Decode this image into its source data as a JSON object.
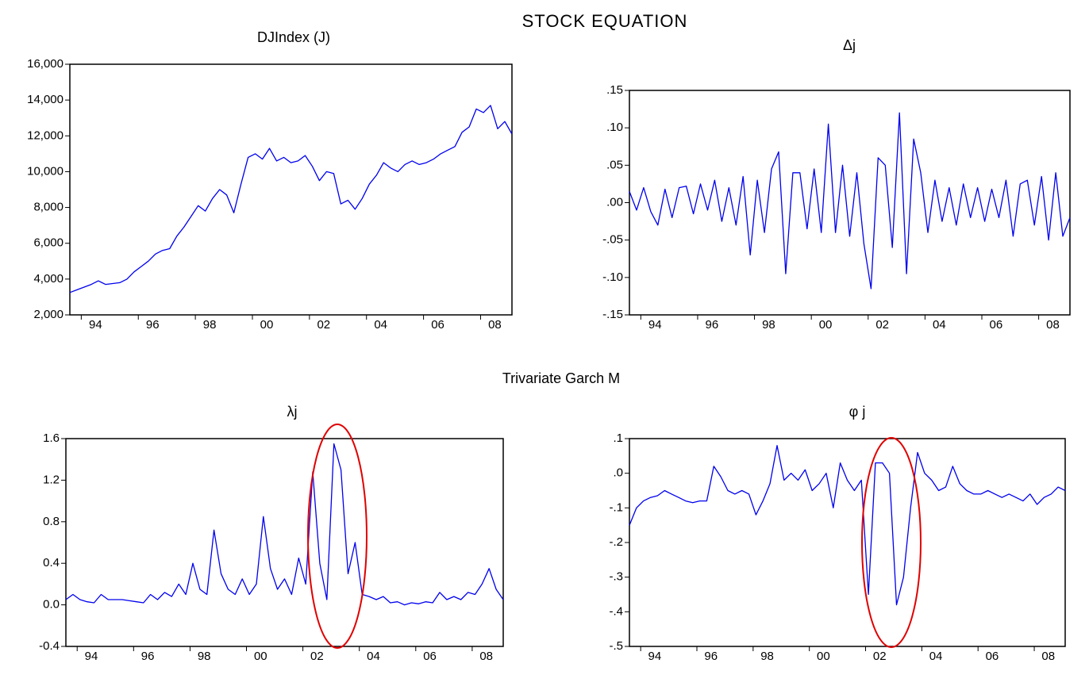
{
  "title": "STOCK EQUATION",
  "section": "Trivariate Garch M",
  "chart_data": [
    {
      "type": "line",
      "title": "DJIndex (J)",
      "color": "#0000ee",
      "x": [
        1993.1,
        1993.35,
        1993.6,
        1993.85,
        1994.1,
        1994.35,
        1994.6,
        1994.85,
        1995.1,
        1995.35,
        1995.6,
        1995.85,
        1996.1,
        1996.35,
        1996.6,
        1996.85,
        1997.1,
        1997.35,
        1997.6,
        1997.85,
        1998.1,
        1998.35,
        1998.6,
        1998.85,
        1999.1,
        1999.35,
        1999.6,
        1999.85,
        2000.1,
        2000.35,
        2000.6,
        2000.85,
        2001.1,
        2001.35,
        2001.6,
        2001.85,
        2002.1,
        2002.35,
        2002.6,
        2002.85,
        2003.1,
        2003.35,
        2003.6,
        2003.85,
        2004.1,
        2004.35,
        2004.6,
        2004.85,
        2005.1,
        2005.35,
        2005.6,
        2005.85,
        2006.1,
        2006.35,
        2006.6,
        2006.85,
        2007.1,
        2007.35,
        2007.6,
        2007.85,
        2008.1,
        2008.35,
        2008.6
      ],
      "values": [
        3250,
        3400,
        3550,
        3700,
        3900,
        3700,
        3750,
        3800,
        4000,
        4400,
        4700,
        5000,
        5400,
        5600,
        5700,
        6400,
        6900,
        7500,
        8100,
        7800,
        8500,
        9000,
        8700,
        7700,
        9300,
        10800,
        11000,
        10700,
        11300,
        10600,
        10800,
        10500,
        10600,
        10900,
        10300,
        9500,
        10000,
        9900,
        8200,
        8400,
        7900,
        8500,
        9300,
        9800,
        10500,
        10200,
        10000,
        10400,
        10600,
        10400,
        10500,
        10700,
        11000,
        11200,
        11400,
        12200,
        12500,
        13500,
        13300,
        13700,
        12400,
        12800,
        12100
      ],
      "xlim": [
        1993.1,
        2008.6
      ],
      "ylim": [
        2000,
        16000
      ],
      "yticks": [
        {
          "value": 2000,
          "label": "2,000"
        },
        {
          "value": 4000,
          "label": "4,000"
        },
        {
          "value": 6000,
          "label": "6,000"
        },
        {
          "value": 8000,
          "label": "8,000"
        },
        {
          "value": 10000,
          "label": "10,000"
        },
        {
          "value": 12000,
          "label": "12,000"
        },
        {
          "value": 14000,
          "label": "14,000"
        },
        {
          "value": 16000,
          "label": "16,000"
        }
      ],
      "xticks": [
        {
          "value": 1994,
          "label": "94"
        },
        {
          "value": 1996,
          "label": "96"
        },
        {
          "value": 1998,
          "label": "98"
        },
        {
          "value": 2000,
          "label": "00"
        },
        {
          "value": 2002,
          "label": "02"
        },
        {
          "value": 2004,
          "label": "04"
        },
        {
          "value": 2006,
          "label": "06"
        },
        {
          "value": 2008,
          "label": "08"
        }
      ]
    },
    {
      "type": "line",
      "title": "Δj",
      "color": "#0000ee",
      "x": [
        1993.1,
        1993.35,
        1993.6,
        1993.85,
        1994.1,
        1994.35,
        1994.6,
        1994.85,
        1995.1,
        1995.35,
        1995.6,
        1995.85,
        1996.1,
        1996.35,
        1996.6,
        1996.85,
        1997.1,
        1997.35,
        1997.6,
        1997.85,
        1998.1,
        1998.35,
        1998.6,
        1998.85,
        1999.1,
        1999.35,
        1999.6,
        1999.85,
        2000.1,
        2000.35,
        2000.6,
        2000.85,
        2001.1,
        2001.35,
        2001.6,
        2001.85,
        2002.1,
        2002.35,
        2002.6,
        2002.85,
        2003.1,
        2003.35,
        2003.6,
        2003.85,
        2004.1,
        2004.35,
        2004.6,
        2004.85,
        2005.1,
        2005.35,
        2005.6,
        2005.85,
        2006.1,
        2006.35,
        2006.6,
        2006.85,
        2007.1,
        2007.35,
        2007.6,
        2007.85,
        2008.1,
        2008.35,
        2008.6
      ],
      "values": [
        0.015,
        -0.01,
        0.02,
        -0.012,
        -0.03,
        0.018,
        -0.02,
        0.02,
        0.022,
        -0.015,
        0.025,
        -0.01,
        0.03,
        -0.025,
        0.02,
        -0.03,
        0.035,
        -0.07,
        0.03,
        -0.04,
        0.045,
        0.068,
        -0.095,
        0.04,
        0.04,
        -0.035,
        0.045,
        -0.04,
        0.105,
        -0.04,
        0.05,
        -0.045,
        0.04,
        -0.055,
        -0.115,
        0.06,
        0.05,
        -0.06,
        0.12,
        -0.095,
        0.085,
        0.04,
        -0.04,
        0.03,
        -0.025,
        0.02,
        -0.03,
        0.025,
        -0.02,
        0.02,
        -0.025,
        0.018,
        -0.02,
        0.03,
        -0.045,
        0.025,
        0.03,
        -0.03,
        0.035,
        -0.05,
        0.04,
        -0.045,
        -0.02
      ],
      "xlim": [
        1993.1,
        2008.6
      ],
      "ylim": [
        -0.15,
        0.15
      ],
      "yticks": [
        {
          "value": -0.15,
          "label": "-.15"
        },
        {
          "value": -0.1,
          "label": "-.10"
        },
        {
          "value": -0.05,
          "label": "-.05"
        },
        {
          "value": 0,
          "label": ".00"
        },
        {
          "value": 0.05,
          "label": ".05"
        },
        {
          "value": 0.1,
          "label": ".10"
        },
        {
          "value": 0.15,
          "label": ".15"
        }
      ],
      "xticks": [
        {
          "value": 1994,
          "label": "94"
        },
        {
          "value": 1996,
          "label": "96"
        },
        {
          "value": 1998,
          "label": "98"
        },
        {
          "value": 2000,
          "label": "00"
        },
        {
          "value": 2002,
          "label": "02"
        },
        {
          "value": 2004,
          "label": "04"
        },
        {
          "value": 2006,
          "label": "06"
        },
        {
          "value": 2008,
          "label": "08"
        }
      ]
    },
    {
      "type": "line",
      "title": "λj",
      "color": "#0000ee",
      "x": [
        1993.1,
        1993.35,
        1993.6,
        1993.85,
        1994.1,
        1994.35,
        1994.6,
        1994.85,
        1995.1,
        1995.35,
        1995.6,
        1995.85,
        1996.1,
        1996.35,
        1996.6,
        1996.85,
        1997.1,
        1997.35,
        1997.6,
        1997.85,
        1998.1,
        1998.35,
        1998.6,
        1998.85,
        1999.1,
        1999.35,
        1999.6,
        1999.85,
        2000.1,
        2000.35,
        2000.6,
        2000.85,
        2001.1,
        2001.35,
        2001.6,
        2001.85,
        2002.1,
        2002.35,
        2002.6,
        2002.85,
        2003.1,
        2003.35,
        2003.6,
        2003.85,
        2004.1,
        2004.35,
        2004.6,
        2004.85,
        2005.1,
        2005.35,
        2005.6,
        2005.85,
        2006.1,
        2006.35,
        2006.6,
        2006.85,
        2007.1,
        2007.35,
        2007.6,
        2007.85,
        2008.1,
        2008.35,
        2008.6
      ],
      "values": [
        0.05,
        0.1,
        0.05,
        0.03,
        0.02,
        0.1,
        0.05,
        0.05,
        0.05,
        0.04,
        0.03,
        0.02,
        0.1,
        0.05,
        0.12,
        0.08,
        0.2,
        0.1,
        0.4,
        0.15,
        0.1,
        0.72,
        0.3,
        0.15,
        0.1,
        0.25,
        0.1,
        0.2,
        0.85,
        0.35,
        0.15,
        0.25,
        0.1,
        0.45,
        0.2,
        1.28,
        0.4,
        0.05,
        1.55,
        1.3,
        0.3,
        0.6,
        0.1,
        0.08,
        0.05,
        0.08,
        0.02,
        0.03,
        0,
        0.02,
        0.01,
        0.03,
        0.02,
        0.12,
        0.05,
        0.08,
        0.05,
        0.12,
        0.1,
        0.2,
        0.35,
        0.15,
        0.05
      ],
      "xlim": [
        1993.1,
        2008.6
      ],
      "ylim": [
        -0.4,
        1.6
      ],
      "yticks": [
        -0.4,
        {
          "value": 0,
          "label": "0.0"
        },
        0.4,
        0.8,
        1.2,
        1.6
      ],
      "xticks": [
        {
          "value": 1994,
          "label": "94"
        },
        {
          "value": 1996,
          "label": "96"
        },
        {
          "value": 1998,
          "label": "98"
        },
        {
          "value": 2000,
          "label": "00"
        },
        {
          "value": 2002,
          "label": "02"
        },
        {
          "value": 2004,
          "label": "04"
        },
        {
          "value": 2006,
          "label": "06"
        },
        {
          "value": 2008,
          "label": "08"
        }
      ]
    },
    {
      "type": "line",
      "title": "φ j",
      "color": "#0000ee",
      "x": [
        1993.1,
        1993.35,
        1993.6,
        1993.85,
        1994.1,
        1994.35,
        1994.6,
        1994.85,
        1995.1,
        1995.35,
        1995.6,
        1995.85,
        1996.1,
        1996.35,
        1996.6,
        1996.85,
        1997.1,
        1997.35,
        1997.6,
        1997.85,
        1998.1,
        1998.35,
        1998.6,
        1998.85,
        1999.1,
        1999.35,
        1999.6,
        1999.85,
        2000.1,
        2000.35,
        2000.6,
        2000.85,
        2001.1,
        2001.35,
        2001.6,
        2001.85,
        2002.1,
        2002.35,
        2002.6,
        2002.85,
        2003.1,
        2003.35,
        2003.6,
        2003.85,
        2004.1,
        2004.35,
        2004.6,
        2004.85,
        2005.1,
        2005.35,
        2005.6,
        2005.85,
        2006.1,
        2006.35,
        2006.6,
        2006.85,
        2007.1,
        2007.35,
        2007.6,
        2007.85,
        2008.1,
        2008.35,
        2008.6
      ],
      "values": [
        -0.15,
        -0.1,
        -0.08,
        -0.07,
        -0.065,
        -0.05,
        -0.06,
        -0.07,
        -0.08,
        -0.085,
        -0.08,
        -0.08,
        0.02,
        -0.01,
        -0.05,
        -0.06,
        -0.05,
        -0.06,
        -0.12,
        -0.08,
        -0.03,
        0.08,
        -0.02,
        0,
        -0.02,
        0.01,
        -0.05,
        -0.03,
        0,
        -0.1,
        0.03,
        -0.02,
        -0.05,
        -0.02,
        -0.35,
        0.03,
        0.03,
        0,
        -0.38,
        -0.3,
        -0.1,
        0.06,
        0,
        -0.02,
        -0.05,
        -0.04,
        0.02,
        -0.03,
        -0.05,
        -0.06,
        -0.06,
        -0.05,
        -0.06,
        -0.07,
        -0.06,
        -0.07,
        -0.08,
        -0.06,
        -0.09,
        -0.07,
        -0.06,
        -0.04,
        -0.05
      ],
      "xlim": [
        1993.1,
        2008.6
      ],
      "ylim": [
        -0.5,
        0.1
      ],
      "yticks": [
        {
          "value": -0.5,
          "label": "-.5"
        },
        {
          "value": -0.4,
          "label": "-.4"
        },
        {
          "value": -0.3,
          "label": "-.3"
        },
        {
          "value": -0.2,
          "label": "-.2"
        },
        {
          "value": -0.1,
          "label": "-.1"
        },
        {
          "value": 0,
          "label": ".0"
        },
        {
          "value": 0.1,
          "label": ".1"
        }
      ],
      "xticks": [
        {
          "value": 1994,
          "label": "94"
        },
        {
          "value": 1996,
          "label": "96"
        },
        {
          "value": 1998,
          "label": "98"
        },
        {
          "value": 2000,
          "label": "00"
        },
        {
          "value": 2002,
          "label": "02"
        },
        {
          "value": 2004,
          "label": "04"
        },
        {
          "value": 2006,
          "label": "06"
        },
        {
          "value": 2008,
          "label": "08"
        }
      ]
    }
  ]
}
